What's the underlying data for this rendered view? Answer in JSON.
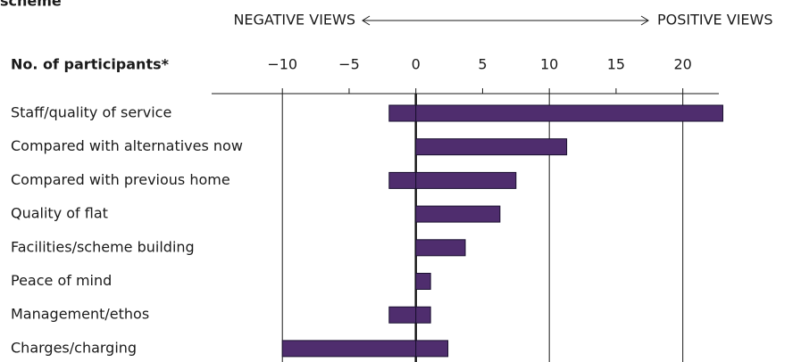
{
  "chart_data": {
    "type": "diverging-bar",
    "title": "scheme",
    "x_label": "No. of participants*",
    "left_annotation": "NEGATIVE VIEWS",
    "right_annotation": "POSITIVE VIEWS",
    "categories": [
      "Staff/quality of service",
      "Compared with alternatives now",
      "Compared with previous home",
      "Quality of flat",
      "Facilities/scheme building",
      "Peace of mind",
      "Management/ethos",
      "Charges/charging"
    ],
    "negative_values": [
      -2,
      0,
      -2,
      0,
      0,
      0,
      -2,
      -10
    ],
    "positive_values": [
      23,
      11.3,
      7.5,
      6.3,
      3.7,
      1.1,
      1.1,
      2.4
    ],
    "color": "#4f2d6e",
    "xlim": [
      -15.3,
      22.7
    ],
    "xticks": [
      {
        "value": -10,
        "label": "−10"
      },
      {
        "value": -5,
        "label": "−5"
      },
      0,
      5,
      10,
      15,
      20
    ],
    "grid_every": 10
  }
}
